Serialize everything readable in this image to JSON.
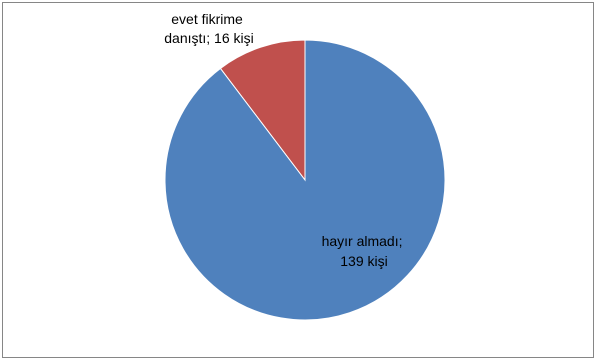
{
  "chart_data": {
    "type": "pie",
    "title": "",
    "slices": [
      {
        "label_lines": [
          "evet fikrime",
          "danıştı; 16 kişi"
        ],
        "category": "evet fikrime danıştı",
        "value": 16,
        "color": "#c0504d"
      },
      {
        "label_lines": [
          "hayır almadı;",
          "139 kişi"
        ],
        "category": "hayır almadı",
        "value": 139,
        "color": "#4f81bd"
      }
    ],
    "legend": "none"
  }
}
